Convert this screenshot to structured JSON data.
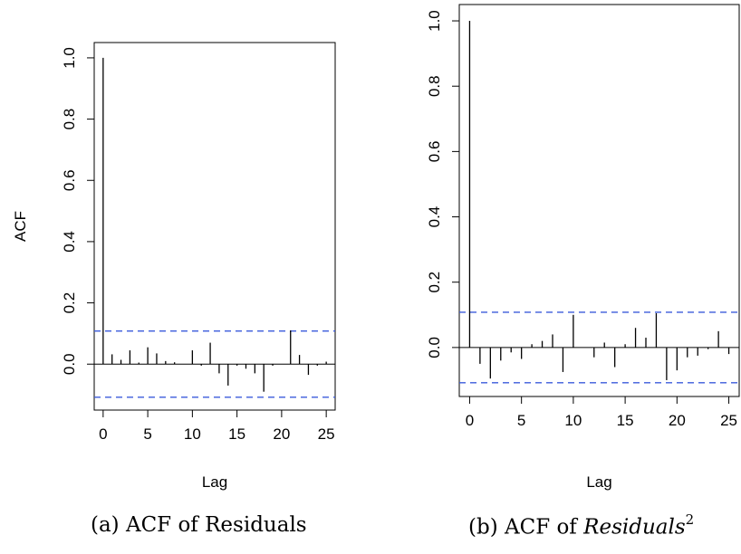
{
  "chart_data": [
    {
      "type": "bar",
      "caption_prefix": "(a) ACF of Residuals",
      "xlabel": "Lag",
      "ylabel": "ACF",
      "xlim": [
        -1,
        26
      ],
      "ylim": [
        -0.15,
        1.05
      ],
      "x_ticks": [
        0,
        5,
        10,
        15,
        20,
        25
      ],
      "y_ticks": [
        0.0,
        0.2,
        0.4,
        0.6,
        0.8,
        1.0
      ],
      "y_tick_labels": [
        "0.0",
        "0.2",
        "0.4",
        "0.6",
        "0.8",
        "1.0"
      ],
      "confidence_bounds": [
        0.108,
        -0.108
      ],
      "bound_color": "#3b5bdb",
      "grid": false,
      "series": [
        {
          "lags": [
            0,
            1,
            2,
            3,
            4,
            5,
            6,
            7,
            8,
            9,
            10,
            11,
            12,
            13,
            14,
            15,
            16,
            17,
            18,
            19,
            20,
            21,
            22,
            23,
            24,
            25
          ],
          "values": [
            1.0,
            0.032,
            0.014,
            0.045,
            0.005,
            0.055,
            0.035,
            0.01,
            0.006,
            0.0,
            0.045,
            -0.005,
            0.07,
            -0.03,
            -0.07,
            -0.005,
            -0.015,
            -0.03,
            -0.09,
            -0.005,
            0.0,
            0.11,
            0.03,
            -0.035,
            -0.005,
            0.008
          ]
        }
      ]
    },
    {
      "type": "bar",
      "caption_prefix": "(b) ACF of ",
      "caption_math": "Residuals",
      "caption_sup": "2",
      "xlabel": "Lag",
      "ylabel": "",
      "xlim": [
        -1,
        26
      ],
      "ylim": [
        -0.15,
        1.05
      ],
      "x_ticks": [
        0,
        5,
        10,
        15,
        20,
        25
      ],
      "y_ticks": [
        0.0,
        0.2,
        0.4,
        0.6,
        0.8,
        1.0
      ],
      "y_tick_labels": [
        "0.0",
        "0.2",
        "0.4",
        "0.6",
        "0.8",
        "1.0"
      ],
      "confidence_bounds": [
        0.108,
        -0.108
      ],
      "bound_color": "#3b5bdb",
      "grid": false,
      "series": [
        {
          "lags": [
            0,
            1,
            2,
            3,
            4,
            5,
            6,
            7,
            8,
            9,
            10,
            11,
            12,
            13,
            14,
            15,
            16,
            17,
            18,
            19,
            20,
            21,
            22,
            23,
            24,
            25
          ],
          "values": [
            1.0,
            -0.05,
            -0.095,
            -0.04,
            -0.015,
            -0.035,
            0.01,
            0.02,
            0.04,
            -0.075,
            0.1,
            0.0,
            -0.03,
            0.015,
            -0.06,
            0.01,
            0.06,
            0.03,
            0.105,
            -0.1,
            -0.07,
            -0.03,
            -0.025,
            -0.005,
            0.05,
            -0.02
          ]
        }
      ]
    }
  ]
}
